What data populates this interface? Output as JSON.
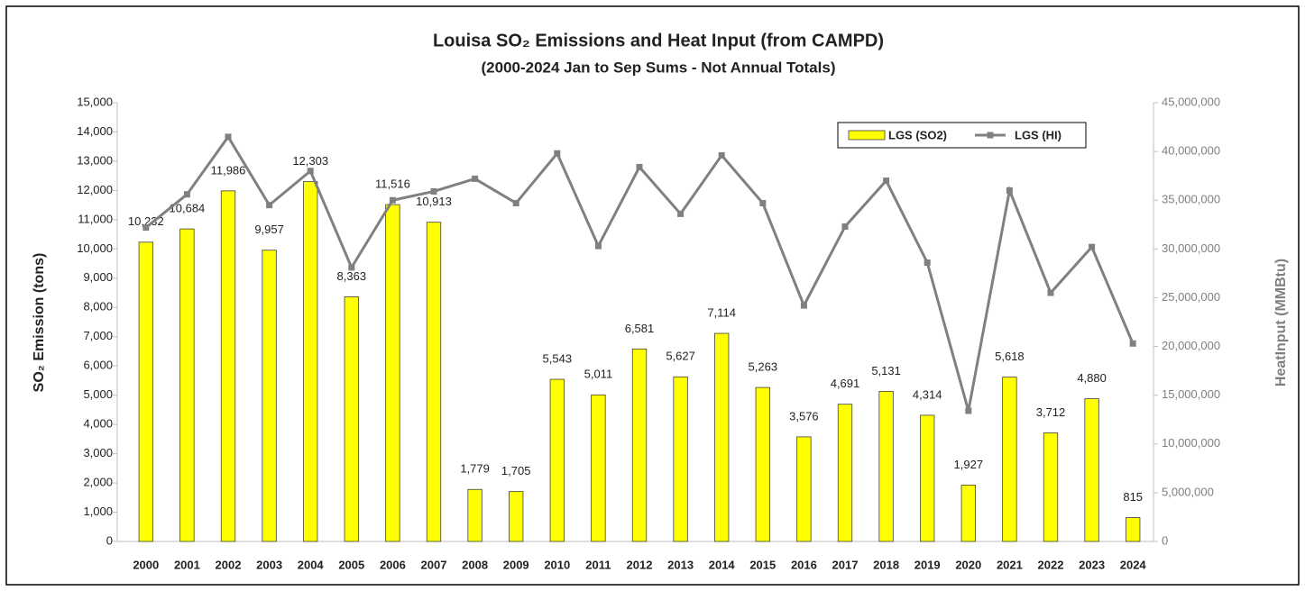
{
  "chart_data": {
    "type": "bar",
    "title": "Louisa SO₂ Emissions and Heat Input (from CAMPD)",
    "subtitle": "(2000-2024 Jan to Sep Sums - Not Annual Totals)",
    "y_label": "SO₂ Emission (tons)",
    "y2_label": "HeatInput (MMBtu)",
    "categories": [
      "2000",
      "2001",
      "2002",
      "2003",
      "2004",
      "2005",
      "2006",
      "2007",
      "2008",
      "2009",
      "2010",
      "2011",
      "2012",
      "2013",
      "2014",
      "2015",
      "2016",
      "2017",
      "2018",
      "2019",
      "2020",
      "2021",
      "2022",
      "2023",
      "2024"
    ],
    "series": [
      {
        "name": "LGS (SO2)",
        "type": "bar",
        "color": "#ffff00",
        "values": [
          10232,
          10684,
          11986,
          9957,
          12303,
          8363,
          11516,
          10913,
          1779,
          1705,
          5543,
          5011,
          6581,
          5627,
          7114,
          5263,
          3576,
          4691,
          5131,
          4314,
          1927,
          5618,
          3712,
          4880,
          815
        ],
        "value_labels": [
          "10,232",
          "10,684",
          "11,986",
          "9,957",
          "12,303",
          "8,363",
          "11,516",
          "10,913",
          "1,779",
          "1,705",
          "5,543",
          "5,011",
          "6,581",
          "5,627",
          "7,114",
          "5,263",
          "3,576",
          "4,691",
          "5,131",
          "4,314",
          "1,927",
          "5,618",
          "3,712",
          "4,880",
          "815"
        ]
      },
      {
        "name": "LGS (HI)",
        "type": "line",
        "color": "#808080",
        "axis": "y2",
        "values": [
          32200000,
          35600000,
          41500000,
          34500000,
          38000000,
          28100000,
          35000000,
          35900000,
          37200000,
          34700000,
          39800000,
          30300000,
          38400000,
          33600000,
          39600000,
          34700000,
          24200000,
          32300000,
          37000000,
          28600000,
          13400000,
          36000000,
          25500000,
          30200000,
          20300000
        ]
      }
    ],
    "ylim": [
      0,
      15000
    ],
    "yticks": [
      0,
      {
        "value": 1000,
        "label": "1,000"
      },
      {
        "value": 2000,
        "label": "2,000"
      },
      {
        "value": 3000,
        "label": "3,000"
      },
      {
        "value": 4000,
        "label": "4,000"
      },
      {
        "value": 5000,
        "label": "5,000"
      },
      {
        "value": 6000,
        "label": "6,000"
      },
      {
        "value": 7000,
        "label": "7,000"
      },
      {
        "value": 8000,
        "label": "8,000"
      },
      {
        "value": 9000,
        "label": "9,000"
      },
      {
        "value": 10000,
        "label": "10,000"
      },
      {
        "value": 11000,
        "label": "11,000"
      },
      {
        "value": 12000,
        "label": "12,000"
      },
      {
        "value": 13000,
        "label": "13,000"
      },
      {
        "value": 14000,
        "label": "14,000"
      },
      {
        "value": 15000,
        "label": "15,000"
      }
    ],
    "y2lim": [
      0,
      45000000
    ],
    "y2ticks": [
      0,
      {
        "value": 5000000,
        "label": "5,000,000"
      },
      {
        "value": 10000000,
        "label": "10,000,000"
      },
      {
        "value": 15000000,
        "label": "15,000,000"
      },
      {
        "value": 20000000,
        "label": "20,000,000"
      },
      {
        "value": 25000000,
        "label": "25,000,000"
      },
      {
        "value": 30000000,
        "label": "30,000,000"
      },
      {
        "value": 35000000,
        "label": "35,000,000"
      },
      {
        "value": 40000000,
        "label": "40,000,000"
      },
      {
        "value": 45000000,
        "label": "45,000,000"
      }
    ],
    "grid": false,
    "legend": "upper right"
  }
}
